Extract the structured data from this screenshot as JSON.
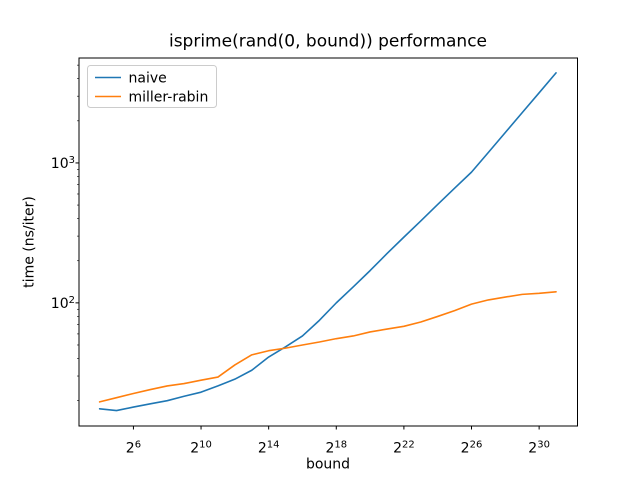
{
  "figure": {
    "background": "#ffffff"
  },
  "chart_data": {
    "type": "line",
    "title": "isprime(rand(0, bound)) performance",
    "xlabel": "bound",
    "ylabel": "time (ns/iter)",
    "x_scale": "log2",
    "y_scale": "log10",
    "grid": false,
    "legend_position": "upper left",
    "axes_color": "#000000",
    "x_log2": [
      4,
      5,
      6,
      7,
      8,
      9,
      10,
      11,
      12,
      13,
      14,
      15,
      16,
      17,
      18,
      19,
      20,
      21,
      22,
      23,
      24,
      25,
      26,
      27,
      28,
      29,
      30,
      31
    ],
    "series": [
      {
        "name": "naive",
        "color": "#1f77b4",
        "values": [
          17.5,
          17,
          18,
          19,
          20,
          21.5,
          23,
          25.5,
          28.5,
          33,
          41,
          48.5,
          58,
          75,
          100,
          130,
          170,
          225,
          295,
          385,
          505,
          660,
          860,
          1190,
          1650,
          2290,
          3170,
          4400
        ]
      },
      {
        "name": "miller-rabin",
        "color": "#ff7f0e",
        "values": [
          19.6,
          21,
          22.5,
          24,
          25.5,
          26.5,
          28,
          29.5,
          36,
          42.5,
          45.5,
          47.5,
          50,
          52.5,
          55.5,
          58,
          62,
          65,
          68,
          73,
          80,
          88,
          98,
          105,
          110,
          115,
          117,
          120
        ]
      }
    ],
    "x_tick_base": 2,
    "x_tick_exponents": [
      6,
      10,
      14,
      18,
      22,
      26,
      30
    ],
    "y_tick_base": 10,
    "y_tick_exponents": [
      2,
      3
    ],
    "xlim_log2": [
      2.78,
      32.27
    ],
    "ylim_log10": [
      1.12,
      3.75
    ]
  }
}
